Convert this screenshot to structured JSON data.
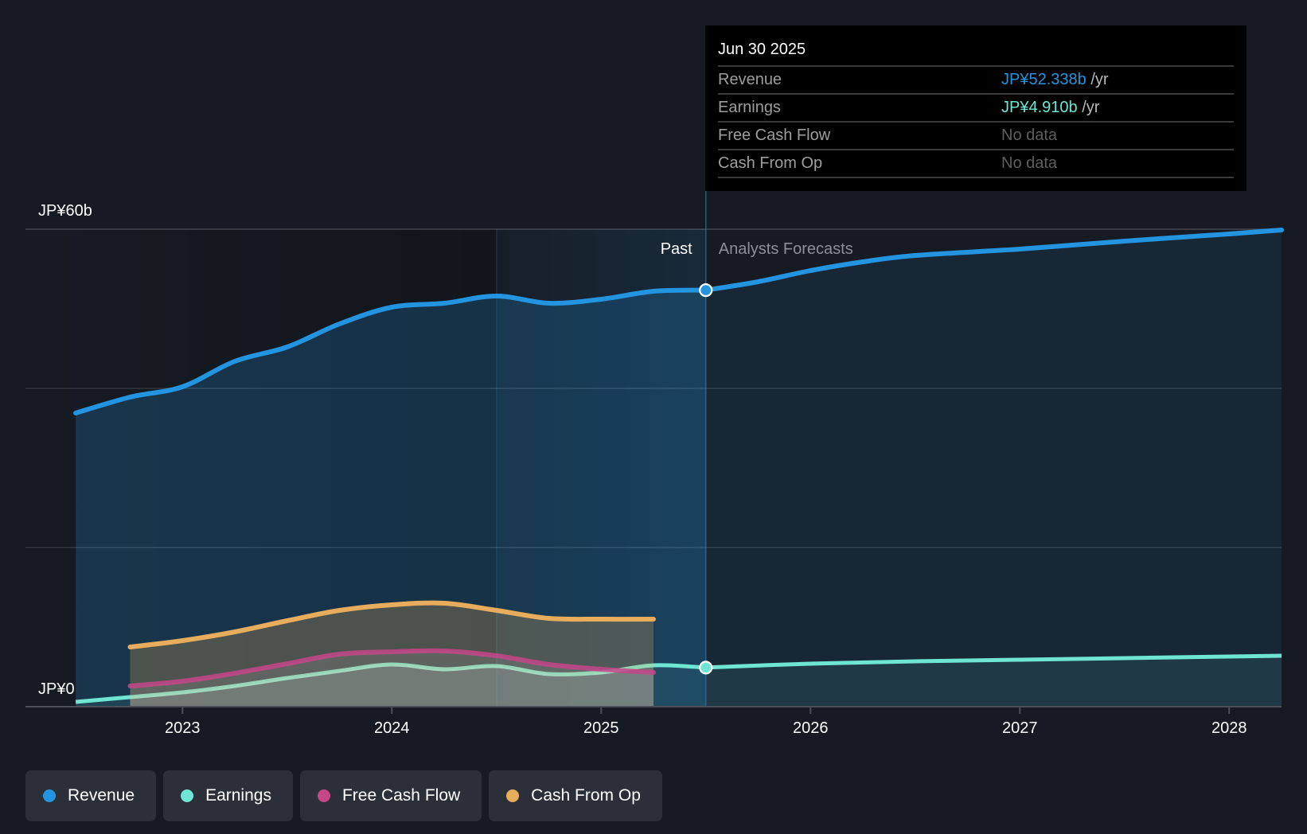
{
  "tooltip": {
    "date": "Jun 30 2025",
    "rows": [
      {
        "label": "Revenue",
        "value": "JP¥52.338b",
        "unit": " /yr",
        "color": "#2394df",
        "has_data": true
      },
      {
        "label": "Earnings",
        "value": "JP¥4.910b",
        "unit": " /yr",
        "color": "#6ee6d3",
        "has_data": true
      },
      {
        "label": "Free Cash Flow",
        "value": "No data",
        "unit": "",
        "color": "#5e5e5e",
        "has_data": false
      },
      {
        "label": "Cash From Op",
        "value": "No data",
        "unit": "",
        "color": "#5e5e5e",
        "has_data": false
      }
    ]
  },
  "legend": [
    {
      "label": "Revenue",
      "color": "#2394df"
    },
    {
      "label": "Earnings",
      "color": "#6ee6d3"
    },
    {
      "label": "Free Cash Flow",
      "color": "#c6468a"
    },
    {
      "label": "Cash From Op",
      "color": "#e7ad5c"
    }
  ],
  "chart_data": {
    "type": "area",
    "title": "",
    "xlabel": "",
    "ylabel": "",
    "unit": "JP¥ billions",
    "xlim": [
      2022.25,
      2028.25
    ],
    "ylim": [
      0,
      60
    ],
    "grid": true,
    "y_gridlines": [
      0,
      20,
      40,
      60
    ],
    "y_tick_labels": [
      {
        "value": 60,
        "text": "JP¥60b"
      },
      {
        "value": 0,
        "text": "JP¥0"
      }
    ],
    "x_ticks": [
      2023,
      2024,
      2025,
      2026,
      2027,
      2028
    ],
    "x_tick_labels": [
      "2023",
      "2024",
      "2025",
      "2026",
      "2027",
      "2028"
    ],
    "regions": {
      "past_label": "Past",
      "forecast_label": "Analysts Forecasts",
      "divider_x": 2025.5,
      "highlight_start_x": 2024.5
    },
    "hover": {
      "x": 2025.5,
      "date": "Jun 30 2025"
    },
    "legend_position": "bottom-left",
    "series": [
      {
        "name": "Revenue",
        "color": "#2394df",
        "past": [
          [
            2022.49,
            36.9
          ],
          [
            2022.75,
            38.9
          ],
          [
            2023.0,
            40.2
          ],
          [
            2023.25,
            43.4
          ],
          [
            2023.5,
            45.2
          ],
          [
            2023.75,
            48.1
          ],
          [
            2024.0,
            50.2
          ],
          [
            2024.25,
            50.7
          ],
          [
            2024.5,
            51.6
          ],
          [
            2024.75,
            50.7
          ],
          [
            2025.0,
            51.2
          ],
          [
            2025.25,
            52.2
          ],
          [
            2025.5,
            52.338
          ]
        ],
        "forecast": [
          [
            2025.5,
            52.338
          ],
          [
            2025.75,
            53.4
          ],
          [
            2026.0,
            54.8
          ],
          [
            2026.25,
            55.9
          ],
          [
            2026.5,
            56.7
          ],
          [
            2027.0,
            57.5
          ],
          [
            2027.5,
            58.5
          ],
          [
            2028.0,
            59.4
          ],
          [
            2028.25,
            59.9
          ]
        ]
      },
      {
        "name": "Earnings",
        "color": "#6ee6d3",
        "past": [
          [
            2022.49,
            0.6
          ],
          [
            2022.75,
            1.2
          ],
          [
            2023.0,
            1.8
          ],
          [
            2023.25,
            2.6
          ],
          [
            2023.5,
            3.6
          ],
          [
            2023.75,
            4.5
          ],
          [
            2024.0,
            5.3
          ],
          [
            2024.25,
            4.7
          ],
          [
            2024.5,
            5.1
          ],
          [
            2024.75,
            4.1
          ],
          [
            2025.0,
            4.3
          ],
          [
            2025.25,
            5.2
          ],
          [
            2025.5,
            4.91
          ]
        ],
        "forecast": [
          [
            2025.5,
            4.91
          ],
          [
            2026.0,
            5.4
          ],
          [
            2026.5,
            5.7
          ],
          [
            2027.0,
            5.9
          ],
          [
            2027.5,
            6.1
          ],
          [
            2028.0,
            6.3
          ],
          [
            2028.25,
            6.4
          ]
        ]
      },
      {
        "name": "Free Cash Flow",
        "color": "#c6468a",
        "past": [
          [
            2022.75,
            2.6
          ],
          [
            2023.0,
            3.2
          ],
          [
            2023.25,
            4.2
          ],
          [
            2023.5,
            5.4
          ],
          [
            2023.75,
            6.6
          ],
          [
            2024.0,
            6.9
          ],
          [
            2024.25,
            7.0
          ],
          [
            2024.5,
            6.4
          ],
          [
            2024.75,
            5.3
          ],
          [
            2025.0,
            4.7
          ],
          [
            2025.25,
            4.3
          ]
        ],
        "forecast": []
      },
      {
        "name": "Cash From Op",
        "color": "#e7ad5c",
        "past": [
          [
            2022.75,
            7.5
          ],
          [
            2023.0,
            8.3
          ],
          [
            2023.25,
            9.4
          ],
          [
            2023.5,
            10.8
          ],
          [
            2023.75,
            12.1
          ],
          [
            2024.0,
            12.8
          ],
          [
            2024.25,
            13.0
          ],
          [
            2024.5,
            12.1
          ],
          [
            2024.75,
            11.1
          ],
          [
            2025.0,
            11.0
          ],
          [
            2025.25,
            11.0
          ]
        ],
        "forecast": []
      }
    ]
  }
}
